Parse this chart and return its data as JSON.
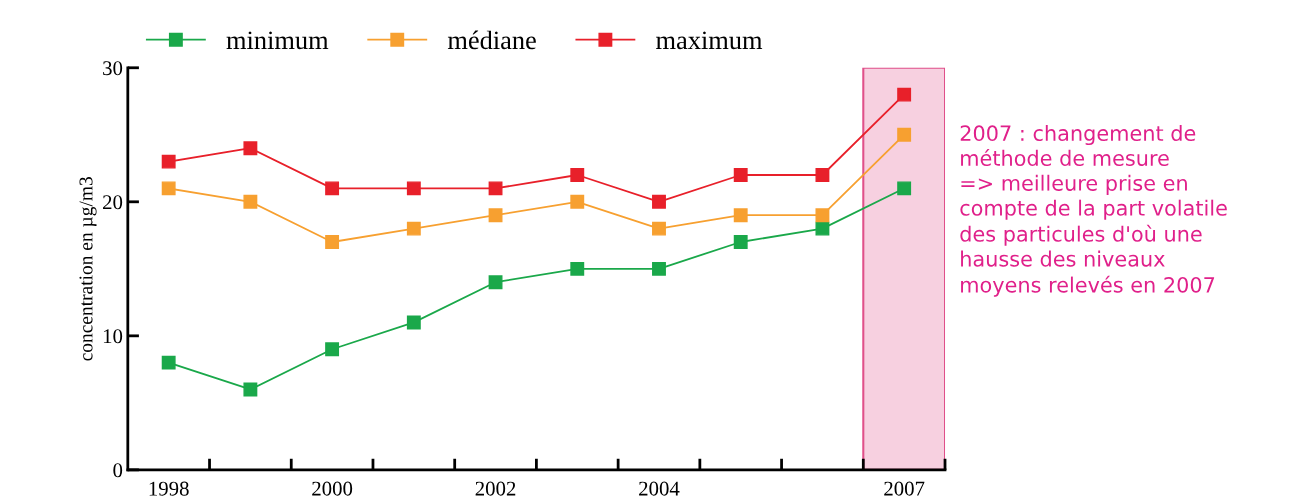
{
  "chart_data": {
    "type": "line",
    "ylabel": "concentration en µg/m3",
    "categories": [
      "1998",
      null,
      "2000",
      null,
      "2002",
      null,
      "2004",
      null,
      null,
      "2007"
    ],
    "series": [
      {
        "name": "minimum",
        "color": "#1aa84a",
        "values": [
          8,
          6,
          9,
          11,
          14,
          15,
          15,
          17,
          18,
          21
        ]
      },
      {
        "name": "médiane",
        "color": "#f7a030",
        "values": [
          21,
          20,
          17,
          18,
          19,
          20,
          18,
          19,
          19,
          25
        ]
      },
      {
        "name": "maximum",
        "color": "#e8202a",
        "values": [
          23,
          24,
          21,
          21,
          21,
          22,
          20,
          22,
          22,
          28
        ]
      }
    ],
    "ylim": [
      0,
      30
    ],
    "yticks": [
      0,
      10,
      20,
      30
    ],
    "bands": [
      {
        "axis": "x",
        "from": "2007",
        "to": "2007",
        "label": null,
        "color": "#f7d0e0"
      }
    ],
    "annotations": [
      "2007 : changement de\nméthode de mesure\n=> meilleure prise en\ncompte de la part volatile\ndes particules d'où une\nhausse des niveaux\nmoyens relevés en 2007"
    ],
    "grid": false,
    "legend": "top",
    "marker": "square",
    "line_style": "solid"
  }
}
